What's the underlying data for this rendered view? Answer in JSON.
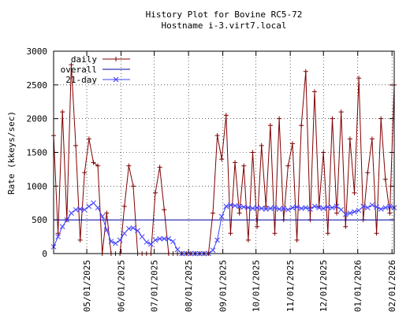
{
  "chart_data": {
    "type": "line",
    "title": "History Plot for Bovine RC5-72",
    "subtitle": "Hostname i-3.virt7.local",
    "y_label": "Rate (kkeys/sec)",
    "grid": true,
    "legend": "top-left",
    "x": [
      "2025-04-01",
      "2025-04-05",
      "2025-04-09",
      "2025-04-13",
      "2025-04-17",
      "2025-04-21",
      "2025-04-25",
      "2025-04-29",
      "2025-05-03",
      "2025-05-07",
      "2025-05-11",
      "2025-05-15",
      "2025-05-19",
      "2025-05-23",
      "2025-05-27",
      "2025-05-31",
      "2025-06-04",
      "2025-06-08",
      "2025-06-12",
      "2025-06-16",
      "2025-06-20",
      "2025-06-24",
      "2025-06-28",
      "2025-07-02",
      "2025-07-06",
      "2025-07-10",
      "2025-07-14",
      "2025-07-18",
      "2025-07-22",
      "2025-07-26",
      "2025-07-30",
      "2025-08-03",
      "2025-08-07",
      "2025-08-11",
      "2025-08-15",
      "2025-08-19",
      "2025-08-23",
      "2025-08-27",
      "2025-08-31",
      "2025-09-04",
      "2025-09-08",
      "2025-09-12",
      "2025-09-16",
      "2025-09-20",
      "2025-09-24",
      "2025-09-28",
      "2025-10-02",
      "2025-10-06",
      "2025-10-10",
      "2025-10-14",
      "2025-10-18",
      "2025-10-22",
      "2025-10-26",
      "2025-10-30",
      "2025-11-03",
      "2025-11-07",
      "2025-11-11",
      "2025-11-15",
      "2025-11-19",
      "2025-11-23",
      "2025-11-27",
      "2025-12-01",
      "2025-12-05",
      "2025-12-09",
      "2025-12-13",
      "2025-12-17",
      "2025-12-21",
      "2025-12-25",
      "2025-12-29",
      "2026-01-02",
      "2026-01-06",
      "2026-01-10",
      "2026-01-14",
      "2026-01-18",
      "2026-01-22",
      "2026-01-26",
      "2026-01-30",
      "2026-02-03"
    ],
    "series": [
      {
        "name": "daily",
        "color": "#800000",
        "marker": "+",
        "values": [
          1750,
          300,
          2100,
          500,
          2800,
          1600,
          200,
          1200,
          1700,
          1350,
          1300,
          0,
          600,
          0,
          0,
          0,
          700,
          1300,
          1000,
          0,
          0,
          0,
          0,
          900,
          1280,
          650,
          0,
          0,
          0,
          0,
          0,
          0,
          0,
          0,
          0,
          0,
          600,
          1750,
          1400,
          2050,
          300,
          1350,
          600,
          1300,
          200,
          1500,
          400,
          1600,
          700,
          1900,
          300,
          2000,
          500,
          1300,
          1630,
          200,
          1900,
          2700,
          500,
          2400,
          700,
          1500,
          300,
          2000,
          600,
          2100,
          400,
          1700,
          900,
          2600,
          500,
          1200,
          1700,
          300,
          2000,
          1100,
          600,
          2500
        ]
      },
      {
        "name": "overall",
        "color": "#0000a0",
        "x": [
          "2025-04-01",
          "2026-02-03"
        ],
        "values": [
          500,
          500
        ]
      },
      {
        "name": "21-day",
        "color": "#4040ff",
        "marker": "x",
        "values": [
          100,
          250,
          400,
          500,
          600,
          650,
          660,
          650,
          700,
          750,
          680,
          550,
          350,
          180,
          150,
          200,
          300,
          370,
          380,
          340,
          250,
          170,
          140,
          200,
          220,
          220,
          220,
          180,
          60,
          0,
          0,
          0,
          0,
          0,
          0,
          0,
          50,
          200,
          550,
          700,
          720,
          710,
          700,
          690,
          680,
          670,
          680,
          670,
          660,
          670,
          680,
          660,
          670,
          650,
          680,
          690,
          670,
          680,
          660,
          700,
          680,
          670,
          690,
          680,
          700,
          650,
          580,
          600,
          620,
          640,
          700,
          680,
          720,
          690,
          660,
          680,
          700,
          680
        ]
      }
    ],
    "xlim": [
      "2025-04-01",
      "2026-02-03"
    ],
    "xticks": [
      {
        "value": "2025-05-01",
        "label": "05/01/2025"
      },
      {
        "value": "2025-06-01",
        "label": "06/01/2025"
      },
      {
        "value": "2025-07-01",
        "label": "07/01/2025"
      },
      {
        "value": "2025-08-01",
        "label": "08/01/2025"
      },
      {
        "value": "2025-09-01",
        "label": "09/01/2025"
      },
      {
        "value": "2025-10-01",
        "label": "10/01/2025"
      },
      {
        "value": "2025-11-01",
        "label": "11/01/2025"
      },
      {
        "value": "2025-12-01",
        "label": "12/01/2025"
      },
      {
        "value": "2026-01-01",
        "label": "01/01/2026"
      },
      {
        "value": "2026-02-01",
        "label": "02/01/2026"
      }
    ],
    "ylim": [
      0,
      3000
    ],
    "yticks": [
      0,
      500,
      1000,
      1500,
      2000,
      2500,
      3000
    ]
  }
}
